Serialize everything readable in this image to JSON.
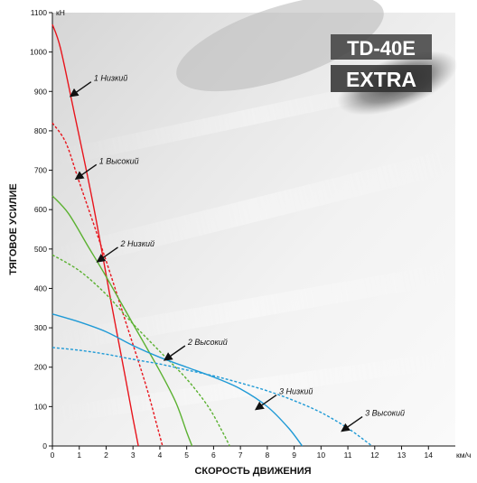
{
  "logo": {
    "line1": "TD-40E",
    "line2": "EXTRA"
  },
  "chart_data": {
    "type": "line",
    "xlabel": "СКОРОСТЬ ДВИЖЕНИЯ",
    "ylabel": "ТЯГОВОЕ УСИЛИЕ",
    "x_unit": "км/ч",
    "y_unit": "кН",
    "xlim": [
      0,
      15
    ],
    "ylim": [
      0,
      1100
    ],
    "x_ticks": [
      0,
      1,
      2,
      3,
      4,
      5,
      6,
      7,
      8,
      9,
      10,
      11,
      12,
      13,
      14
    ],
    "y_ticks": [
      0,
      100,
      200,
      300,
      400,
      500,
      600,
      700,
      800,
      900,
      1000,
      1100
    ],
    "grid": false,
    "series": [
      {
        "name": "1 Низкий",
        "color": "#e8141c",
        "dash": "solid",
        "x": [
          0,
          0.3,
          0.8,
          1.5,
          2.2,
          2.7,
          3.0,
          3.2
        ],
        "y": [
          1070,
          1010,
          850,
          620,
          360,
          180,
          70,
          0
        ]
      },
      {
        "name": "1 Высокий",
        "color": "#e8141c",
        "dash": "dashed",
        "x": [
          0,
          0.5,
          1.0,
          2.0,
          2.8,
          3.5,
          3.9,
          4.1
        ],
        "y": [
          820,
          770,
          670,
          470,
          300,
          150,
          50,
          0
        ]
      },
      {
        "name": "2 Низкий",
        "color": "#5bb131",
        "dash": "solid",
        "x": [
          0,
          0.6,
          1.3,
          2.0,
          3.0,
          4.0,
          4.6,
          5.0,
          5.2
        ],
        "y": [
          635,
          590,
          510,
          430,
          310,
          190,
          110,
          35,
          0
        ]
      },
      {
        "name": "2 Высокий",
        "color": "#5bb131",
        "dash": "dashed",
        "x": [
          0,
          1.0,
          2.0,
          3.0,
          4.0,
          5.0,
          5.8,
          6.3,
          6.6
        ],
        "y": [
          485,
          445,
          385,
          310,
          240,
          170,
          100,
          40,
          0
        ]
      },
      {
        "name": "3 Низкий",
        "color": "#1f9ad6",
        "dash": "solid",
        "x": [
          0,
          1.0,
          2.0,
          3.0,
          4.0,
          5.0,
          6.0,
          7.0,
          8.0,
          8.8,
          9.3
        ],
        "y": [
          335,
          315,
          290,
          255,
          225,
          200,
          175,
          145,
          100,
          45,
          0
        ]
      },
      {
        "name": "3 Высокий",
        "color": "#1f9ad6",
        "dash": "dashed",
        "x": [
          0,
          1.0,
          2.0,
          3.0,
          4.0,
          5.0,
          6.0,
          7.0,
          8.0,
          9.0,
          10.0,
          11.0,
          11.9
        ],
        "y": [
          250,
          243,
          233,
          220,
          208,
          193,
          178,
          160,
          140,
          115,
          85,
          45,
          0
        ]
      }
    ],
    "annotations": [
      {
        "text": "1 Низкий",
        "series": "1 Низкий",
        "x": 0.7,
        "y": 890
      },
      {
        "text": "1 Высокий",
        "series": "1 Высокий",
        "x": 0.9,
        "y": 680
      },
      {
        "text": "2 Низкий",
        "series": "2 Низкий",
        "x": 1.7,
        "y": 470
      },
      {
        "text": "2 Высокий",
        "series": "2 Высокий",
        "x": 4.2,
        "y": 220
      },
      {
        "text": "3 Низкий",
        "series": "3 Низкий",
        "x": 7.6,
        "y": 95
      },
      {
        "text": "3 Высокий",
        "series": "3 Высокий",
        "x": 10.8,
        "y": 40
      }
    ]
  }
}
